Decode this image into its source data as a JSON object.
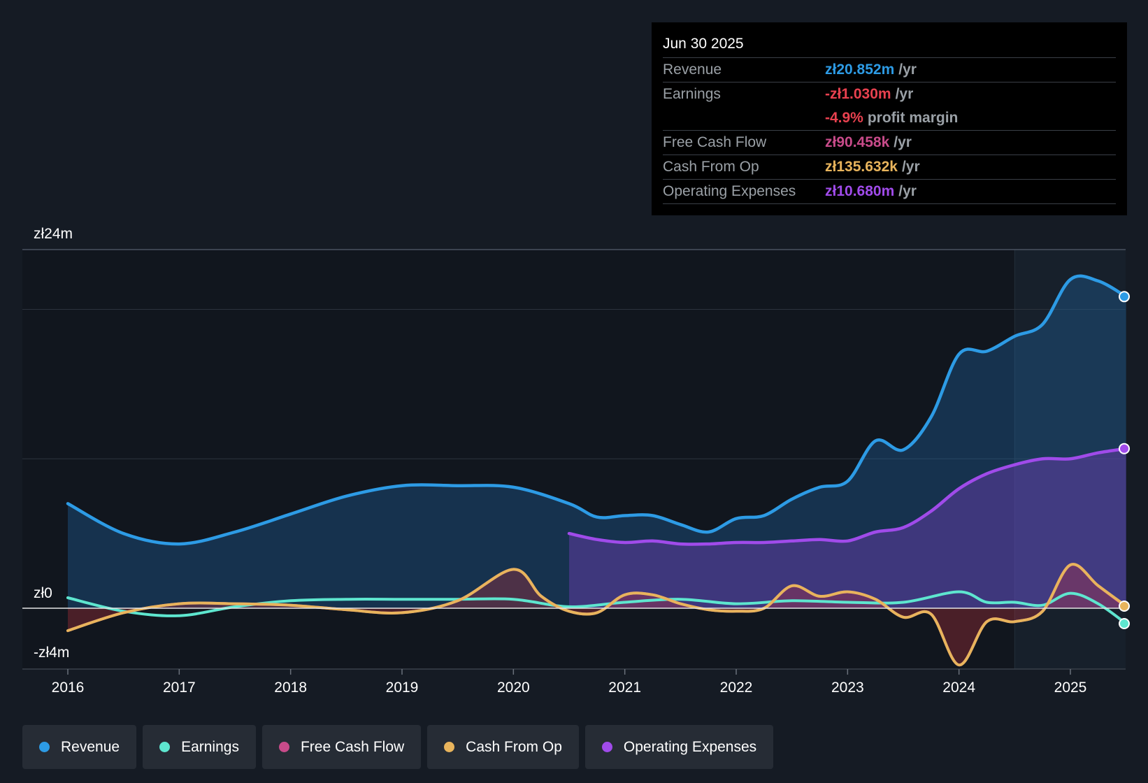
{
  "tooltip": {
    "date": "Jun 30 2025",
    "rows": [
      {
        "label": "Revenue",
        "value": "zł20.852m",
        "unit": "/yr",
        "color": "#2d9be5"
      },
      {
        "label": "Earnings",
        "value": "-zł1.030m",
        "unit": "/yr",
        "color": "#e8414f"
      },
      {
        "label": "",
        "value": "-4.9%",
        "unit": "profit margin",
        "color": "#e8414f"
      },
      {
        "label": "Free Cash Flow",
        "value": "zł90.458k",
        "unit": "/yr",
        "color": "#c84b8a"
      },
      {
        "label": "Cash From Op",
        "value": "zł135.632k",
        "unit": "/yr",
        "color": "#e8b45c"
      },
      {
        "label": "Operating Expenses",
        "value": "zł10.680m",
        "unit": "/yr",
        "color": "#a04bea"
      }
    ]
  },
  "legend": [
    {
      "label": "Revenue",
      "color": "#2d9be5"
    },
    {
      "label": "Earnings",
      "color": "#5ee6cf"
    },
    {
      "label": "Free Cash Flow",
      "color": "#c84b8a"
    },
    {
      "label": "Cash From Op",
      "color": "#e8b45c"
    },
    {
      "label": "Operating Expenses",
      "color": "#a04bea"
    }
  ],
  "chart_data": {
    "type": "area",
    "title": "",
    "xlabel": "",
    "ylabel": "",
    "y_tick_labels": [
      "zł24m",
      "zł0",
      "-zł4m"
    ],
    "ylim": [
      -4,
      24
    ],
    "xlim": [
      2015.6,
      2025.5
    ],
    "x_ticks": [
      2016,
      2017,
      2018,
      2019,
      2020,
      2021,
      2022,
      2023,
      2024,
      2025
    ],
    "x_tick_labels": [
      "2016",
      "2017",
      "2018",
      "2019",
      "2020",
      "2021",
      "2022",
      "2023",
      "2024",
      "2025"
    ],
    "gridlines_at": [
      24,
      20,
      10
    ],
    "highlight_from": 2024.5,
    "series": [
      {
        "name": "Revenue",
        "color": "#2d9be5",
        "fill": true,
        "x": [
          2016,
          2016.5,
          2017,
          2017.5,
          2018,
          2018.5,
          2019,
          2019.5,
          2020,
          2020.5,
          2020.75,
          2021,
          2021.25,
          2021.5,
          2021.75,
          2022,
          2022.25,
          2022.5,
          2022.75,
          2023,
          2023.25,
          2023.5,
          2023.75,
          2024,
          2024.25,
          2024.5,
          2024.75,
          2025,
          2025.25,
          2025.5
        ],
        "y": [
          7.0,
          5.0,
          4.3,
          5.1,
          6.3,
          7.5,
          8.2,
          8.2,
          8.1,
          7.0,
          6.1,
          6.2,
          6.2,
          5.6,
          5.1,
          6.0,
          6.2,
          7.3,
          8.1,
          8.5,
          11.2,
          10.6,
          12.8,
          17.0,
          17.2,
          18.2,
          19.0,
          22.0,
          21.9,
          20.852
        ]
      },
      {
        "name": "Operating Expenses",
        "color": "#a04bea",
        "fill": true,
        "x": [
          2020.5,
          2020.75,
          2021,
          2021.25,
          2021.5,
          2021.75,
          2022,
          2022.25,
          2022.5,
          2022.75,
          2023,
          2023.25,
          2023.5,
          2023.75,
          2024,
          2024.25,
          2024.5,
          2024.75,
          2025,
          2025.25,
          2025.5
        ],
        "y": [
          5.0,
          4.6,
          4.4,
          4.5,
          4.3,
          4.3,
          4.4,
          4.4,
          4.5,
          4.6,
          4.5,
          5.1,
          5.4,
          6.5,
          8.0,
          9.0,
          9.6,
          10.0,
          10.0,
          10.4,
          10.68
        ]
      },
      {
        "name": "Earnings",
        "color": "#5ee6cf",
        "fill": false,
        "x": [
          2016,
          2016.5,
          2017,
          2017.5,
          2018,
          2018.5,
          2019,
          2019.5,
          2020,
          2020.5,
          2021,
          2021.5,
          2022,
          2022.5,
          2023,
          2023.5,
          2024,
          2024.25,
          2024.5,
          2024.75,
          2025,
          2025.25,
          2025.5
        ],
        "y": [
          0.7,
          -0.2,
          -0.5,
          0.1,
          0.5,
          0.6,
          0.6,
          0.6,
          0.6,
          0.1,
          0.4,
          0.6,
          0.3,
          0.5,
          0.4,
          0.4,
          1.1,
          0.4,
          0.4,
          0.2,
          1.0,
          0.3,
          -1.03
        ]
      },
      {
        "name": "Free Cash Flow",
        "color": "#c84b8a",
        "fill": false,
        "x": [
          2016,
          2016.5,
          2017,
          2017.5,
          2018,
          2018.5,
          2019,
          2019.5,
          2020,
          2020.25,
          2020.5,
          2020.75,
          2021,
          2021.25,
          2021.5,
          2021.75,
          2022,
          2022.25,
          2022.5,
          2022.75,
          2023,
          2023.25,
          2023.5,
          2023.75,
          2024,
          2024.25,
          2024.5,
          2024.75,
          2025,
          2025.25,
          2025.5
        ],
        "y": [
          -1.5,
          -0.3,
          0.3,
          0.3,
          0.2,
          -0.1,
          -0.3,
          0.5,
          2.6,
          0.8,
          -0.2,
          -0.3,
          0.9,
          0.9,
          0.3,
          -0.1,
          -0.2,
          0.0,
          1.5,
          0.8,
          1.1,
          0.6,
          -0.6,
          -0.4,
          -3.8,
          -0.9,
          -0.9,
          -0.2,
          2.9,
          1.5,
          0.09
        ]
      },
      {
        "name": "Cash From Op",
        "color": "#e8b45c",
        "fill": false,
        "x": [
          2016,
          2016.5,
          2017,
          2017.5,
          2018,
          2018.5,
          2019,
          2019.5,
          2020,
          2020.25,
          2020.5,
          2020.75,
          2021,
          2021.25,
          2021.5,
          2021.75,
          2022,
          2022.25,
          2022.5,
          2022.75,
          2023,
          2023.25,
          2023.5,
          2023.75,
          2024,
          2024.25,
          2024.5,
          2024.75,
          2025,
          2025.25,
          2025.5
        ],
        "y": [
          -1.5,
          -0.3,
          0.3,
          0.3,
          0.2,
          -0.1,
          -0.3,
          0.5,
          2.6,
          0.8,
          -0.2,
          -0.3,
          0.9,
          0.9,
          0.3,
          -0.1,
          -0.2,
          0.0,
          1.5,
          0.8,
          1.1,
          0.6,
          -0.6,
          -0.4,
          -3.8,
          -0.9,
          -0.9,
          -0.2,
          2.9,
          1.5,
          0.14
        ]
      }
    ]
  }
}
